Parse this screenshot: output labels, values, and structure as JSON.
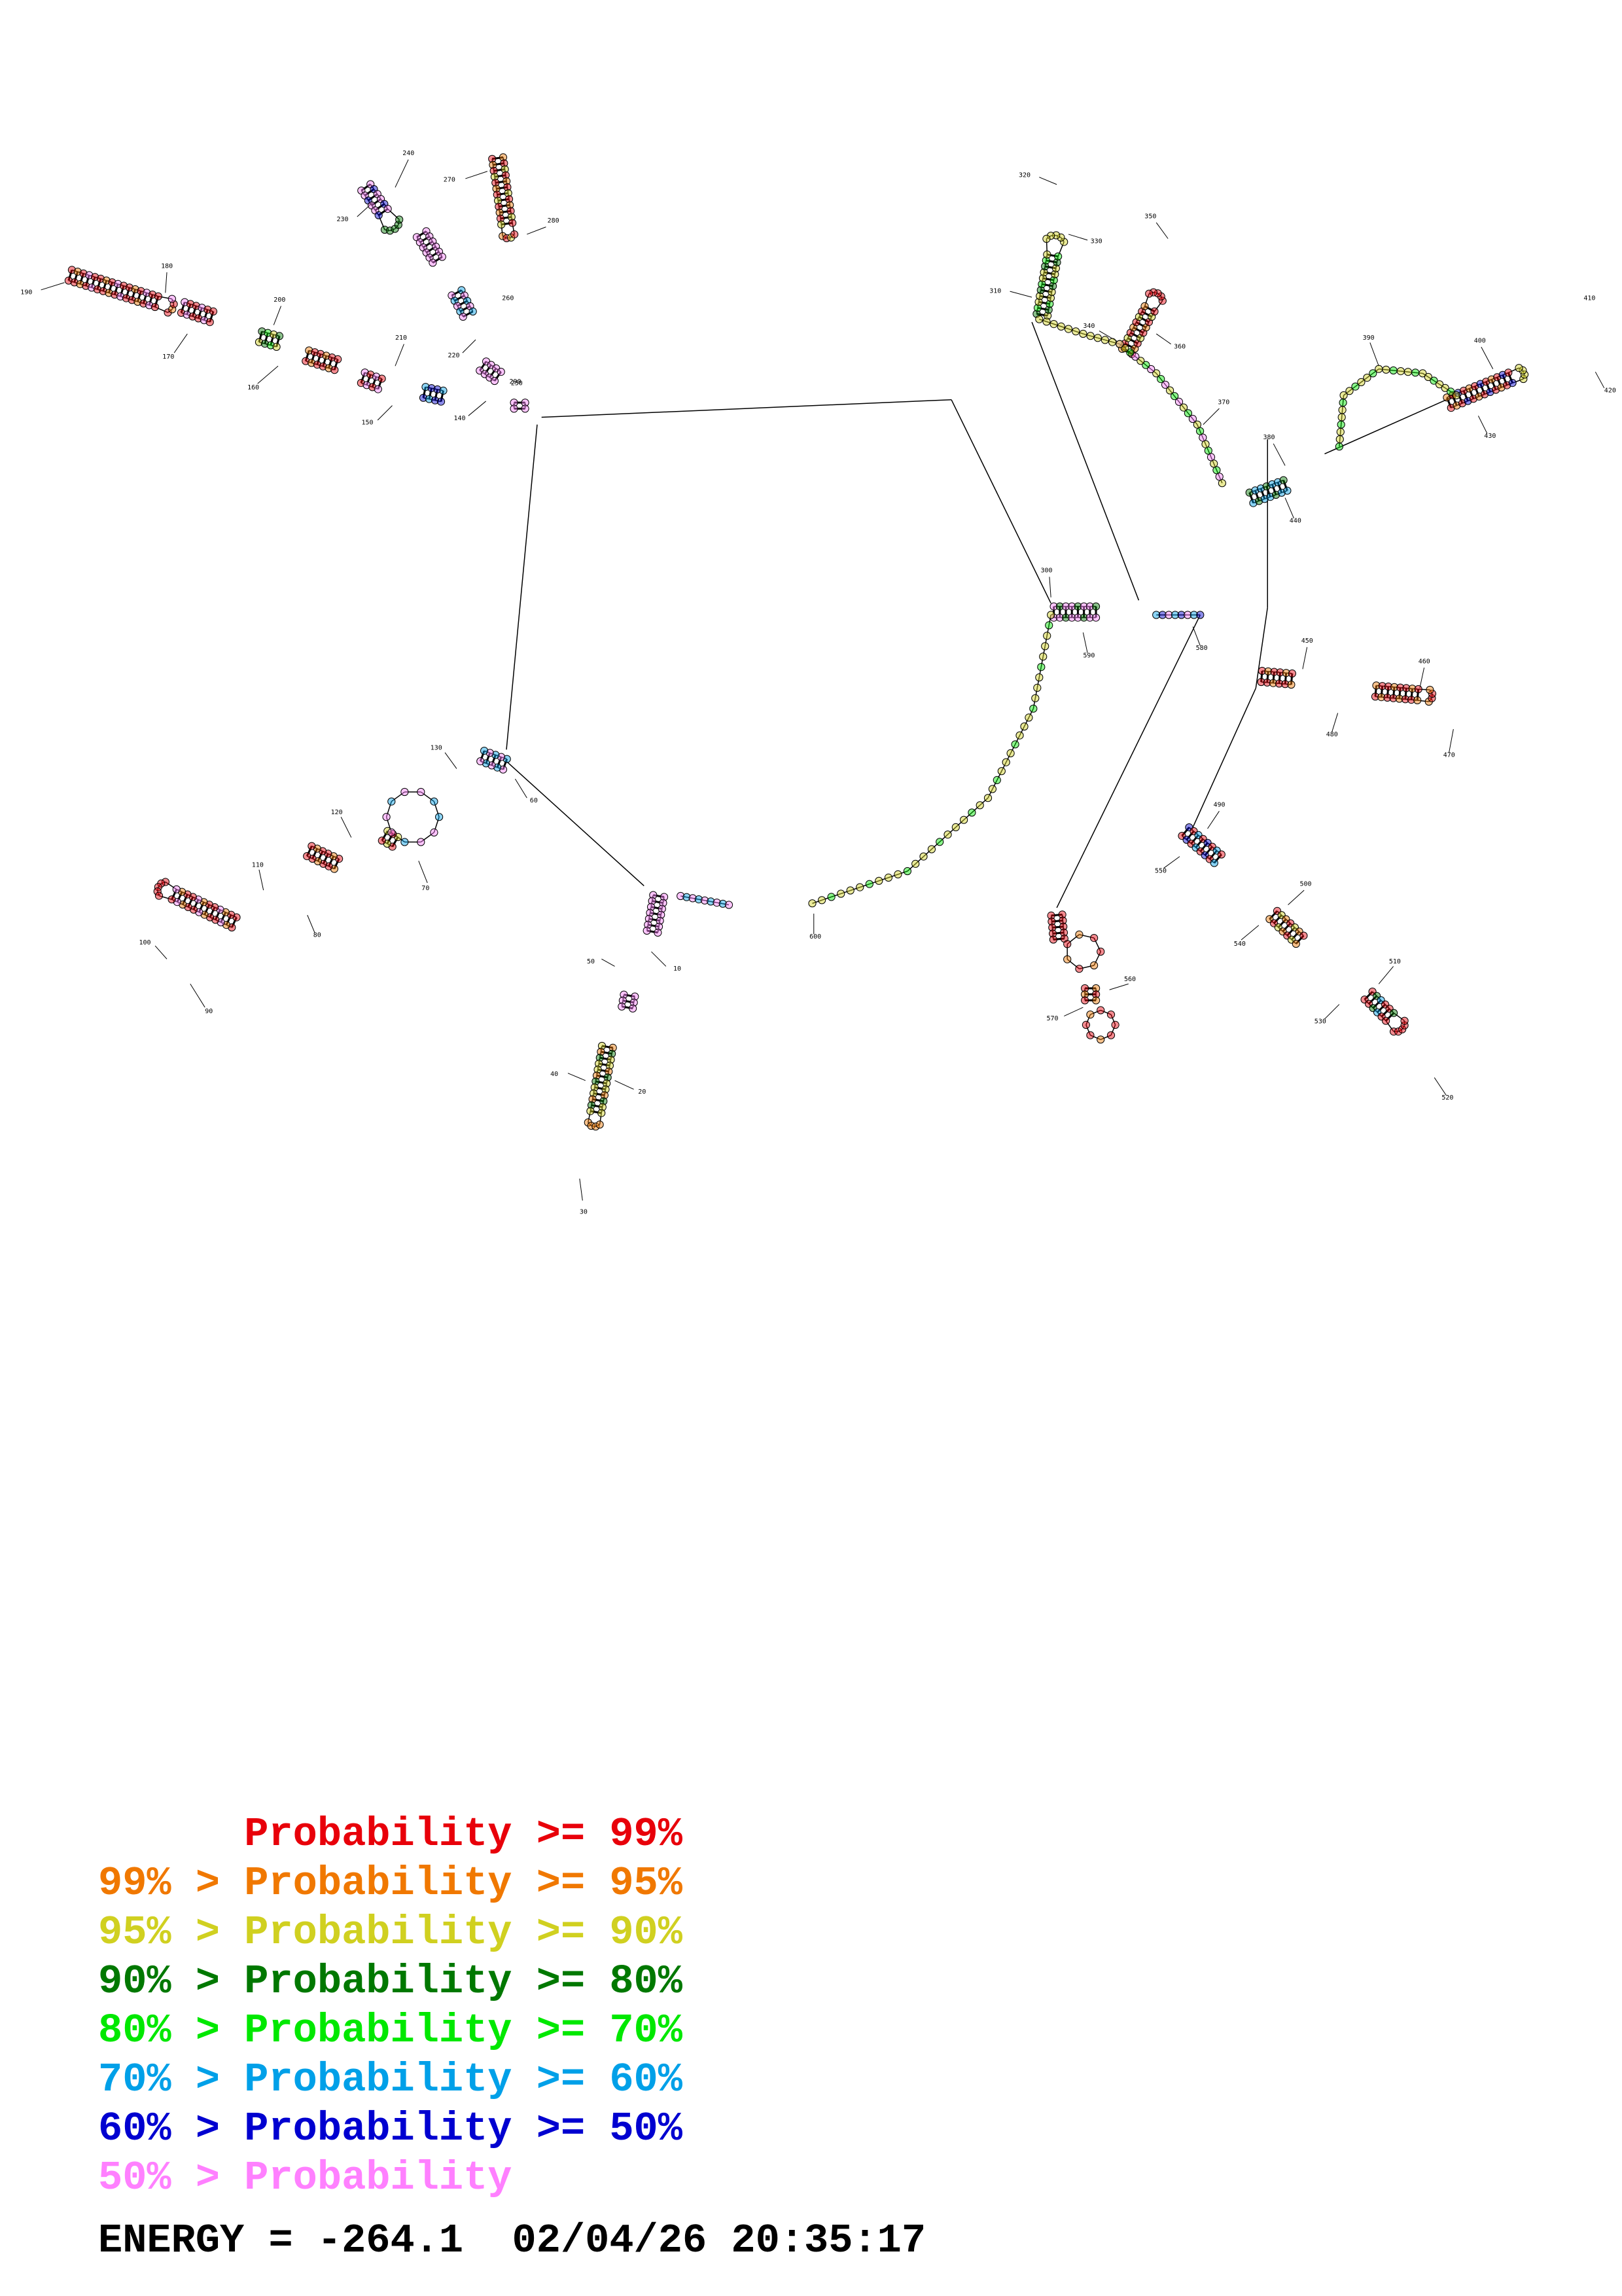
{
  "structure": {
    "position_labels": [
      "10",
      "20",
      "30",
      "40",
      "50",
      "60",
      "70",
      "80",
      "90",
      "100",
      "110",
      "120",
      "130",
      "140",
      "150",
      "160",
      "170",
      "180",
      "190",
      "200",
      "210",
      "220",
      "230",
      "240",
      "250",
      "260",
      "270",
      "280",
      "290",
      "300",
      "310",
      "320",
      "330",
      "340",
      "350",
      "360",
      "370",
      "380",
      "390",
      "400",
      "410",
      "420",
      "430",
      "440",
      "450",
      "460",
      "470",
      "480",
      "490",
      "500",
      "510",
      "520",
      "530",
      "540",
      "550",
      "560",
      "570",
      "580",
      "590",
      "600"
    ],
    "colors": {
      "p99": "#e8000a",
      "p95": "#f07800",
      "p90": "#d0d020",
      "p80": "#007800",
      "p70": "#00e800",
      "p60": "#00a0e8",
      "p50": "#0000d0",
      "plow": "#ff80ff"
    }
  },
  "legend": [
    {
      "prefix": "",
      "label": "Probability",
      "suffix": " >= 99%",
      "color": "#e8000a"
    },
    {
      "prefix": "99% > ",
      "label": "Probability",
      "suffix": " >= 95%",
      "color": "#f07800"
    },
    {
      "prefix": "95% > ",
      "label": "Probability",
      "suffix": " >= 90%",
      "color": "#d0d020"
    },
    {
      "prefix": "90% > ",
      "label": "Probability",
      "suffix": " >= 80%",
      "color": "#007800"
    },
    {
      "prefix": "80% > ",
      "label": "Probability",
      "suffix": " >= 70%",
      "color": "#00e800"
    },
    {
      "prefix": "70% > ",
      "label": "Probability",
      "suffix": " >= 60%",
      "color": "#00a0e8"
    },
    {
      "prefix": "60% > ",
      "label": "Probability",
      "suffix": " >= 50%",
      "color": "#0000d0"
    },
    {
      "prefix": "50% > ",
      "label": "Probability",
      "suffix": "",
      "color": "#ff80ff"
    }
  ],
  "energy": {
    "label": "ENERGY = ",
    "value": "-264.1",
    "timestamp": "02/04/26 20:35:17"
  }
}
